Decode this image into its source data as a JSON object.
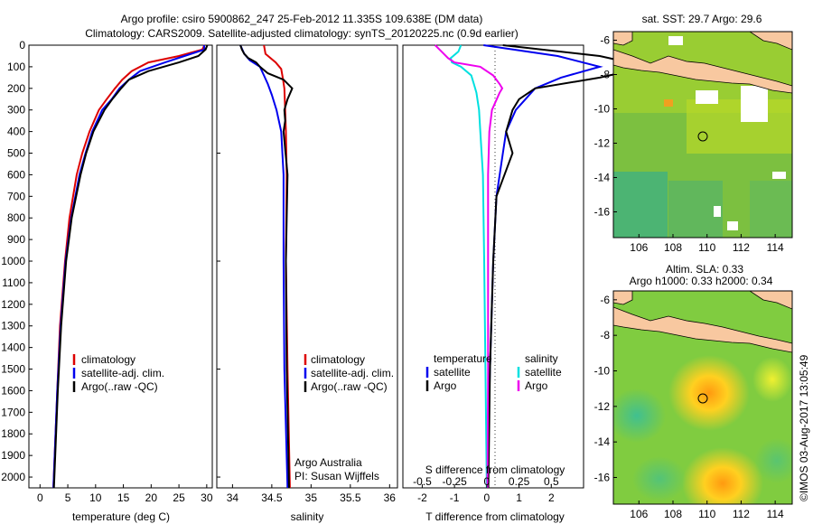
{
  "header": {
    "line1": "Argo profile: csiro 5900862_247 25-Feb-2012 11.335S 109.638E (DM data)",
    "line2": "Climatology: CARS2009. Satellite-adjusted climatology: synTS_20120225.nc (0.9d earlier)"
  },
  "colors": {
    "climatology": "#dd0000",
    "satellite": "#0000ee",
    "argo": "#000000",
    "sat_salinity": "#00e0e0",
    "argo_salinity": "#ee00ee",
    "land": "#f8c8a0"
  },
  "chart_data": [
    {
      "type": "line",
      "xlabel": "temperature (deg C)",
      "ylabel": "",
      "xlim": [
        -2,
        31
      ],
      "ylim": [
        2050,
        0
      ],
      "x_ticks": [
        "0",
        "5",
        "10",
        "15",
        "20",
        "25",
        "30"
      ],
      "y_ticks": [
        "0",
        "100",
        "200",
        "300",
        "400",
        "500",
        "600",
        "700",
        "800",
        "900",
        "1000",
        "1100",
        "1200",
        "1300",
        "1400",
        "1500",
        "1600",
        "1700",
        "1800",
        "1900",
        "2000"
      ],
      "legend": [
        "climatology",
        "satellite-adj. clim.",
        "Argo(..raw -QC)"
      ],
      "legend_position": "lower-right",
      "series": [
        {
          "name": "climatology",
          "depth": [
            0,
            20,
            50,
            80,
            120,
            160,
            200,
            250,
            300,
            400,
            500,
            600,
            800,
            1000,
            1300,
            1600,
            2050
          ],
          "values": [
            29.6,
            29.2,
            25,
            19.5,
            16.5,
            14.8,
            13.5,
            12,
            10.6,
            8.9,
            7.6,
            6.6,
            5.3,
            4.5,
            3.6,
            3.1,
            2.4
          ]
        },
        {
          "name": "satellite-adj. clim.",
          "depth": [
            0,
            20,
            50,
            80,
            120,
            160,
            200,
            250,
            300,
            400,
            500,
            600,
            800,
            1000,
            1300,
            1600,
            2050
          ],
          "values": [
            29.5,
            29.6,
            26,
            22.5,
            18,
            16,
            14.3,
            12.9,
            11.2,
            9.4,
            8.2,
            7.1,
            5.6,
            4.6,
            3.7,
            3.1,
            2.4
          ]
        },
        {
          "name": "Argo(..raw -QC)",
          "depth": [
            0,
            20,
            50,
            80,
            120,
            160,
            200,
            250,
            300,
            400,
            500,
            600,
            800,
            1000,
            1300,
            1600,
            2050
          ],
          "values": [
            30.1,
            29.8,
            28.5,
            25,
            19.5,
            16,
            14.6,
            13,
            11.6,
            9.6,
            8.3,
            7.3,
            5.7,
            4.7,
            3.8,
            3.2,
            2.5
          ]
        }
      ]
    },
    {
      "type": "line",
      "xlabel": "salinity",
      "ylabel": "",
      "xlim": [
        33.8,
        36.1
      ],
      "ylim": [
        2050,
        0
      ],
      "x_ticks": [
        "34",
        "34.5",
        "35",
        "35.5",
        "36"
      ],
      "legend": [
        "climatology",
        "satellite-adj. clim.",
        "Argo(..raw -QC)"
      ],
      "legend_position": "lower-right",
      "annotations": [
        "Argo Australia",
        "PI: Susan Wijffels"
      ],
      "series": [
        {
          "name": "climatology",
          "depth": [
            0,
            40,
            80,
            110,
            150,
            200,
            300,
            400,
            600,
            1000,
            1500,
            2050
          ],
          "values": [
            34.4,
            34.42,
            34.55,
            34.62,
            34.64,
            34.66,
            34.67,
            34.68,
            34.69,
            34.68,
            34.7,
            34.73
          ]
        },
        {
          "name": "satellite-adj. clim.",
          "depth": [
            0,
            40,
            70,
            100,
            140,
            180,
            230,
            300,
            400,
            600,
            1000,
            1500,
            2050
          ],
          "values": [
            34.1,
            34.15,
            34.22,
            34.35,
            34.4,
            34.45,
            34.5,
            34.56,
            34.62,
            34.65,
            34.65,
            34.66,
            34.7
          ]
        },
        {
          "name": "Argo(..raw -QC)",
          "depth": [
            0,
            20,
            40,
            60,
            80,
            100,
            130,
            160,
            200,
            250,
            300,
            350,
            400,
            600,
            1000,
            1500,
            2050
          ],
          "values": [
            34.1,
            34.12,
            34.15,
            34.2,
            34.3,
            34.35,
            34.45,
            34.65,
            34.76,
            34.7,
            34.66,
            34.67,
            34.65,
            34.7,
            34.68,
            34.69,
            34.72
          ]
        }
      ]
    },
    {
      "type": "line",
      "xlabel": "T difference from climatology",
      "ylabel": "",
      "xlim": [
        -2.6,
        3
      ],
      "ylim": [
        2050,
        0
      ],
      "x_ticks": [
        "-2",
        "-1",
        "0",
        "1",
        "2"
      ],
      "secondary_xlabel": "S difference from climatology",
      "secondary_x_ticks": [
        "-0.5",
        "-0.25",
        "0",
        "0.25",
        "0.5"
      ],
      "legend": [
        "temperature",
        "satellite",
        "Argo",
        "salinity",
        "satellite",
        "Argo"
      ],
      "legend_position": "lower-center",
      "series": [
        {
          "name": "satellite",
          "variable": "temperature",
          "depth": [
            0,
            50,
            100,
            150,
            200,
            250,
            300,
            400,
            500,
            700,
            1000,
            1500,
            2050
          ],
          "values": [
            -0.1,
            2.2,
            3.5,
            2.3,
            1.5,
            1.2,
            0.9,
            0.6,
            0.5,
            0.3,
            0.2,
            0.1,
            0
          ]
        },
        {
          "name": "Argo",
          "variable": "temperature",
          "depth": [
            0,
            50,
            100,
            150,
            200,
            250,
            300,
            400,
            500,
            700,
            1000,
            1500,
            2050
          ],
          "values": [
            0.5,
            3.5,
            5.0,
            3.5,
            1.5,
            1.0,
            0.8,
            0.6,
            0.8,
            0.3,
            0.2,
            0.1,
            0.05
          ]
        },
        {
          "name": "satellite",
          "variable": "salinity",
          "depth": [
            0,
            30,
            60,
            80,
            100,
            140,
            180,
            220,
            300,
            400,
            600,
            1000,
            1500,
            2050
          ],
          "values": [
            -0.2,
            -0.22,
            -0.28,
            -0.27,
            -0.2,
            -0.12,
            -0.1,
            -0.08,
            -0.06,
            -0.05,
            -0.03,
            -0.02,
            -0.01,
            0
          ]
        },
        {
          "name": "Argo",
          "variable": "salinity",
          "depth": [
            0,
            30,
            60,
            80,
            100,
            140,
            180,
            200,
            220,
            300,
            400,
            600,
            1000,
            1500,
            2050
          ],
          "values": [
            -0.4,
            -0.35,
            -0.3,
            -0.25,
            -0.05,
            0.05,
            0.1,
            0.12,
            0.1,
            0.04,
            0.02,
            0.01,
            0.01,
            0.01,
            0.005
          ]
        }
      ]
    },
    {
      "type": "heatmap",
      "title": "sat. SST: 29.7  Argo: 29.6",
      "xlim": [
        104.5,
        115
      ],
      "ylim": [
        -17.5,
        -5.5
      ],
      "x_ticks": [
        "106",
        "108",
        "110",
        "112",
        "114"
      ],
      "y_ticks": [
        "-6",
        "-8",
        "-10",
        "-12",
        "-14",
        "-16"
      ],
      "profile_location": {
        "lon": 109.638,
        "lat": -11.335
      }
    },
    {
      "type": "heatmap",
      "title": "Altim. SLA: 0.33",
      "subtitle": "Argo h1000: 0.33 h2000: 0.34",
      "xlim": [
        104.5,
        115
      ],
      "ylim": [
        -17.5,
        -5.5
      ],
      "x_ticks": [
        "106",
        "108",
        "110",
        "112",
        "114"
      ],
      "y_ticks": [
        "-6",
        "-8",
        "-10",
        "-12",
        "-14",
        "-16"
      ],
      "profile_location": {
        "lon": 109.638,
        "lat": -11.335
      }
    }
  ],
  "credit": "©IMOS 03-Aug-2017 13:05:49"
}
